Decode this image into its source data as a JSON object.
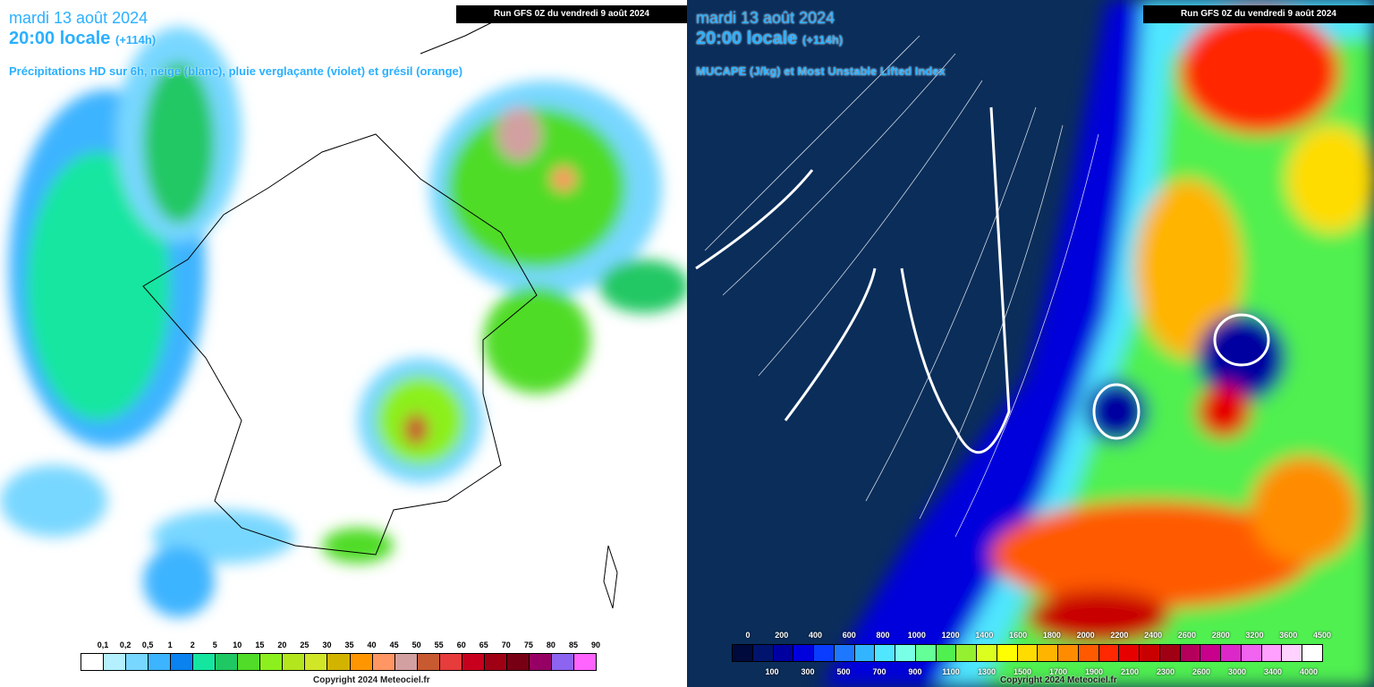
{
  "left": {
    "date": "mardi 13 août 2024",
    "time": "20:00 locale",
    "lead": "(+114h)",
    "subtitle": "Précipitations HD sur 6h, neige (blanc), pluie verglaçante (violet) et grésil (orange)",
    "run": "Run GFS 0Z du vendredi 9 août 2024",
    "legend": {
      "labels": [
        "0,1",
        "0,2",
        "0,5",
        "1",
        "2",
        "5",
        "10",
        "15",
        "20",
        "25",
        "30",
        "35",
        "40",
        "45",
        "50",
        "55",
        "60",
        "65",
        "70",
        "75",
        "80",
        "85",
        "90"
      ],
      "colors": [
        "#ffffff",
        "#b4f0ff",
        "#78d7ff",
        "#3cb4ff",
        "#0a82f0",
        "#14e6a0",
        "#20c864",
        "#50dc28",
        "#8cf01e",
        "#b4e61e",
        "#d2e628",
        "#d2b400",
        "#ff9600",
        "#ff9664",
        "#d2a0a0",
        "#c85a32",
        "#e63c3c",
        "#c8001e",
        "#a00014",
        "#780014",
        "#960064",
        "#8c64f0",
        "#ff64ff"
      ]
    },
    "copyright": "Copyright 2024 Meteociel.fr"
  },
  "right": {
    "date": "mardi 13 août 2024",
    "time": "20:00 locale",
    "lead": "(+114h)",
    "subtitle": "MUCAPE (J/kg) et Most Unstable Lifted Index",
    "run": "Run GFS 0Z du vendredi 9 août 2024",
    "legend": {
      "top_labels": [
        "0",
        "200",
        "400",
        "600",
        "800",
        "1000",
        "1200",
        "1400",
        "1600",
        "1800",
        "2000",
        "2200",
        "2400",
        "2600",
        "2800",
        "3200",
        "3600",
        "4500"
      ],
      "bottom_labels": [
        "100",
        "300",
        "500",
        "700",
        "900",
        "1100",
        "1300",
        "1500",
        "1700",
        "1900",
        "2100",
        "2300",
        "2600",
        "3000",
        "3400",
        "4000"
      ],
      "colors": [
        "#000a3c",
        "#00146e",
        "#0000a0",
        "#0000dc",
        "#0a3cff",
        "#1e78ff",
        "#32b4ff",
        "#50e6ff",
        "#78ffe6",
        "#64ff96",
        "#50f050",
        "#96f032",
        "#dcff1e",
        "#ffff00",
        "#ffdc00",
        "#ffb400",
        "#ff8c00",
        "#ff5a00",
        "#ff2800",
        "#e60000",
        "#c80000",
        "#a00014",
        "#b4005a",
        "#c8008c",
        "#dc28c8",
        "#f064f0",
        "#ffa0ff",
        "#ffd2ff",
        "#ffffff"
      ]
    },
    "copyright": "Copyright 2024 Meteociel.fr"
  }
}
